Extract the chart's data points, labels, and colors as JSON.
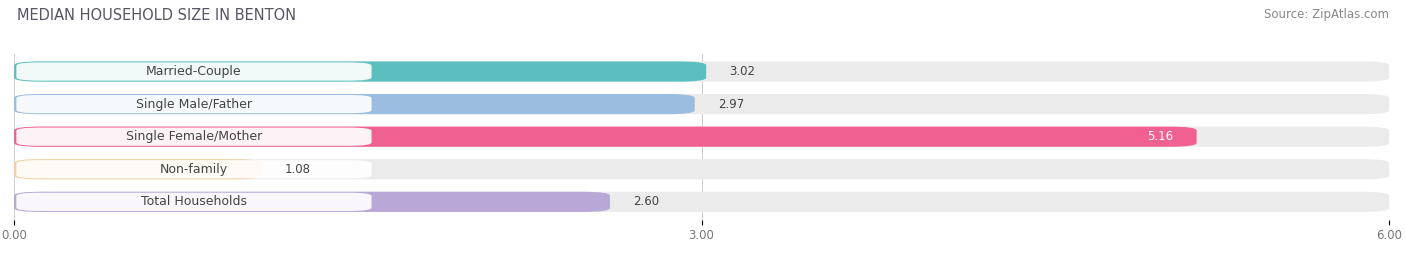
{
  "title": "MEDIAN HOUSEHOLD SIZE IN BENTON",
  "source": "Source: ZipAtlas.com",
  "categories": [
    "Married-Couple",
    "Single Male/Father",
    "Single Female/Mother",
    "Non-family",
    "Total Households"
  ],
  "values": [
    3.02,
    2.97,
    5.16,
    1.08,
    2.6
  ],
  "bar_colors": [
    "#5bbfbf",
    "#9bbde0",
    "#f06090",
    "#f5cfa0",
    "#b8a8d8"
  ],
  "bar_bg_color": "#ebebeb",
  "xlim": [
    0,
    6.0
  ],
  "xticks": [
    0.0,
    3.0,
    6.0
  ],
  "xtick_labels": [
    "0.00",
    "3.00",
    "6.00"
  ],
  "title_fontsize": 10.5,
  "source_fontsize": 8.5,
  "label_fontsize": 9,
  "value_fontsize": 8.5,
  "background_color": "#ffffff",
  "bar_height": 0.62,
  "value_white_threshold": 5.0
}
